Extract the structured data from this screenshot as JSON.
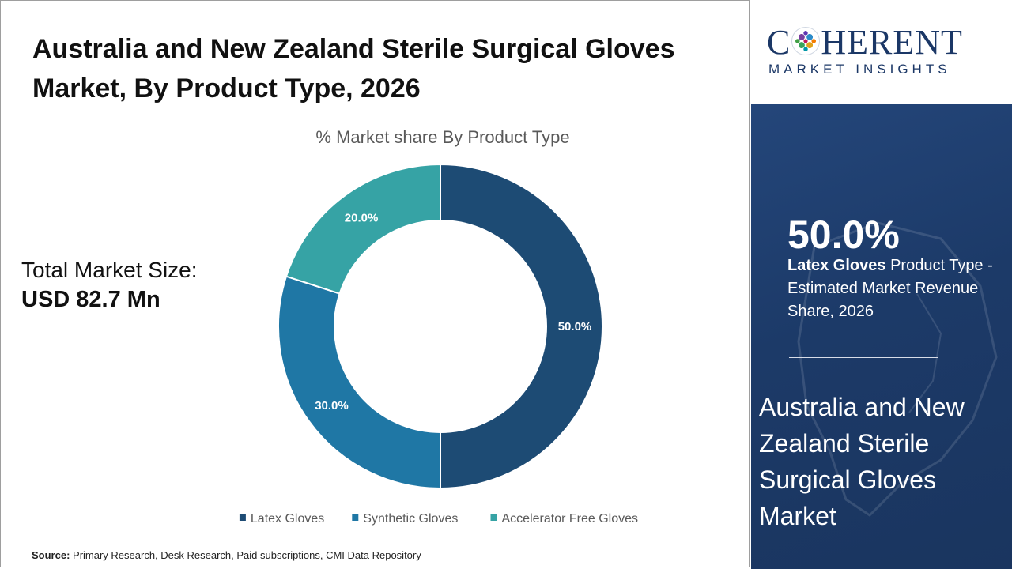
{
  "title": "Australia and New Zealand Sterile Surgical Gloves Market, By Product Type, 2026",
  "total_market": {
    "label": "Total Market Size:",
    "value": "USD 82.7 Mn"
  },
  "source": {
    "label": "Source:",
    "text": "Primary Research, Desk Research, Paid subscriptions, CMI Data Repository"
  },
  "logo": {
    "brand_left": "C",
    "brand_right": "HERENT",
    "subtitle": "MARKET INSIGHTS"
  },
  "highlight": {
    "percent": "50.0%",
    "segment": "Latex Gloves",
    "description": "Product Type - Estimated Market Revenue Share, 2026",
    "market_title": "Australia and New Zealand Sterile Surgical Gloves Market"
  },
  "chart_data": {
    "type": "pie",
    "variant": "donut",
    "title": "% Market share By Product Type",
    "categories": [
      "Latex Gloves",
      "Synthetic Gloves",
      "Accelerator Free Gloves"
    ],
    "values": [
      50.0,
      30.0,
      20.0
    ],
    "data_labels": [
      "50.0%",
      "30.0%",
      "20.0%"
    ],
    "colors": [
      "#1d4b74",
      "#1f77a5",
      "#36a3a5"
    ],
    "start": "12 o'clock, clockwise",
    "legend_position": "bottom"
  }
}
